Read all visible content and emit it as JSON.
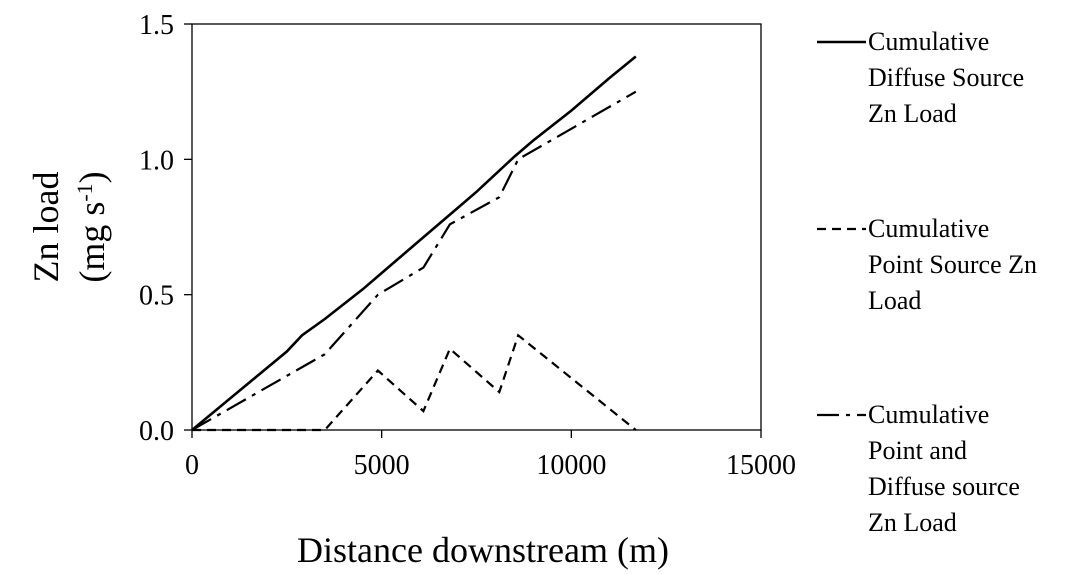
{
  "chart_data": {
    "type": "line",
    "xlabel": "Distance downstream (m)",
    "ylabel_line1": "Zn load",
    "ylabel_line2_main": "(mg s",
    "ylabel_line2_sup": "-1",
    "ylabel_line2_end": ")",
    "xlim": [
      0,
      15000
    ],
    "ylim": [
      0,
      1.5
    ],
    "xticks": [
      0,
      5000,
      10000,
      15000
    ],
    "xtick_labels": [
      "0",
      "5000",
      "10000",
      "15000"
    ],
    "yticks": [
      0,
      0.5,
      1.0,
      1.5
    ],
    "ytick_labels": [
      "0.0",
      "0.5",
      "1.0",
      "1.5"
    ],
    "grid": false,
    "legend_position": "right",
    "series": [
      {
        "name_lines": [
          "Cumulative",
          "Diffuse Source",
          "Zn Load"
        ],
        "style": "solid",
        "x": [
          0,
          2500,
          2900,
          3500,
          4500,
          5000,
          6000,
          7000,
          7500,
          8500,
          9000,
          10000,
          11000,
          11700
        ],
        "y": [
          0,
          0.29,
          0.35,
          0.41,
          0.52,
          0.58,
          0.7,
          0.82,
          0.88,
          1.01,
          1.07,
          1.18,
          1.3,
          1.38
        ]
      },
      {
        "name_lines": [
          "Cumulative",
          "Point Source Zn",
          "Load"
        ],
        "style": "dashed",
        "x": [
          0,
          3500,
          4900,
          6100,
          6800,
          8100,
          8600,
          11700
        ],
        "y": [
          0,
          0,
          0.22,
          0.07,
          0.3,
          0.14,
          0.35,
          0
        ]
      },
      {
        "name_lines": [
          "Cumulative",
          "Point and",
          "Diffuse source",
          "Zn Load"
        ],
        "style": "dashdot",
        "x": [
          0,
          3500,
          4900,
          6100,
          6800,
          8100,
          8600,
          11700
        ],
        "y": [
          0,
          0.28,
          0.5,
          0.6,
          0.76,
          0.86,
          1.0,
          1.25
        ]
      }
    ]
  }
}
